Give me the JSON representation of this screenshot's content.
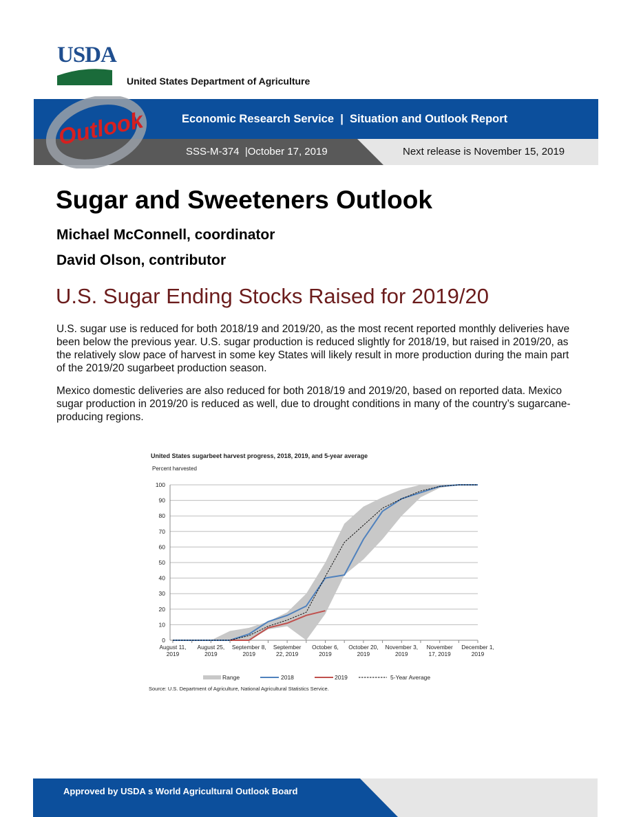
{
  "header": {
    "logo": "USDA",
    "department": "United States Department of Agriculture",
    "outlook_logo": "Outlook",
    "banner": "Economic Research Service  |  Situation and Outlook Report",
    "report_id": "SSS-M-374  |October 17, 2019",
    "next_release": "Next release is November 15, 2019"
  },
  "title": "Sugar and Sweeteners Outlook",
  "authors": [
    "Michael McConnell, coordinator",
    "David Olson, contributor"
  ],
  "headline": "U.S. Sugar Ending Stocks Raised for 2019/20",
  "paragraphs": [
    "U.S. sugar use is reduced for both 2018/19 and 2019/20, as the most recent reported monthly deliveries have been below the previous year.  U.S. sugar production is reduced slightly for 2018/19, but raised in 2019/20, as the relatively slow pace of harvest in some key States will likely result in more production during the main part of the 2019/20 sugarbeet production season.",
    "Mexico domestic deliveries are also reduced for both 2018/19 and 2019/20, based on reported data. Mexico sugar production in 2019/20 is reduced as well, due to drought conditions in many of the country’s sugarcane-producing regions."
  ],
  "chart_data": {
    "type": "line",
    "title": "United States sugarbeet harvest progress, 2018, 2019, and 5-year average",
    "y_label": "Percent harvested",
    "categories": [
      "August 11, 2019",
      null,
      "August 25, 2019",
      null,
      "September 8, 2019",
      null,
      "September 22, 2019",
      null,
      "October 6, 2019",
      null,
      "October 20, 2019",
      null,
      "November 3, 2019",
      null,
      "November 17, 2019",
      null,
      "December 1, 2019"
    ],
    "range": {
      "name": "Range",
      "color": "#c8c8c8",
      "low": [
        0,
        0,
        0,
        0,
        0,
        7,
        9,
        0,
        17,
        42,
        52,
        65,
        80,
        92,
        98,
        100,
        100
      ],
      "high": [
        0,
        0,
        0,
        6,
        8,
        12,
        18,
        30,
        50,
        75,
        86,
        92,
        97,
        100,
        100,
        100,
        100
      ]
    },
    "series": [
      {
        "name": "2018",
        "color": "#4f81bd",
        "values": [
          0,
          0,
          0,
          0,
          4,
          12,
          16,
          22,
          40,
          42,
          65,
          83,
          91,
          95,
          99,
          100,
          100
        ]
      },
      {
        "name": "2019",
        "color": "#c0504d",
        "values": [
          null,
          null,
          null,
          0,
          0,
          8,
          11,
          16,
          19,
          null,
          null,
          null,
          null,
          null,
          null,
          null,
          null
        ]
      },
      {
        "name": "5-Year Average",
        "color": "#000000",
        "dashed": true,
        "values": [
          0,
          0,
          0,
          0,
          3,
          9,
          13,
          18,
          41,
          63,
          74,
          85,
          91,
          96,
          99,
          100,
          100
        ]
      }
    ],
    "ylim": [
      0,
      100
    ],
    "yticks": [
      0,
      10,
      20,
      30,
      40,
      50,
      60,
      70,
      80,
      90,
      100
    ],
    "grid": true,
    "source": "Source: U.S. Department of Agriculture, National Agricultural Statistics Service."
  },
  "footer": "Approved by USDA s World Agricultural Outlook Board"
}
